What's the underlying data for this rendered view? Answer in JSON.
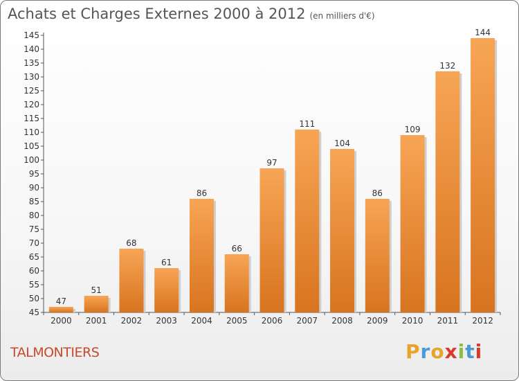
{
  "title": "Achats et Charges Externes 2000 à 2012",
  "subtitle": "(en milliers d'€)",
  "town": "TALMONTIERS",
  "logo": "Proxiti",
  "colors": {
    "bar_top": "#f7a555",
    "bar_bottom": "#d8741f",
    "town": "#c84a2c",
    "logo": [
      "#e8a32a",
      "#4a9ad8",
      "#e8a32a",
      "#d93a2a",
      "#8dbd3c",
      "#4a9ad8",
      "#d93a2a"
    ]
  },
  "chart_data": {
    "type": "bar",
    "categories": [
      "2000",
      "2001",
      "2002",
      "2003",
      "2004",
      "2005",
      "2006",
      "2007",
      "2008",
      "2009",
      "2010",
      "2011",
      "2012"
    ],
    "values": [
      47,
      51,
      68,
      61,
      86,
      66,
      97,
      111,
      104,
      86,
      109,
      132,
      144
    ],
    "title": "Achats et Charges Externes 2000 à 2012",
    "xlabel": "",
    "ylabel": "",
    "ylim": [
      45,
      145
    ],
    "yticks": [
      45,
      50,
      55,
      60,
      65,
      70,
      75,
      80,
      85,
      90,
      95,
      100,
      105,
      110,
      115,
      120,
      125,
      130,
      135,
      140,
      145
    ],
    "grid": false,
    "data_labels": true
  }
}
